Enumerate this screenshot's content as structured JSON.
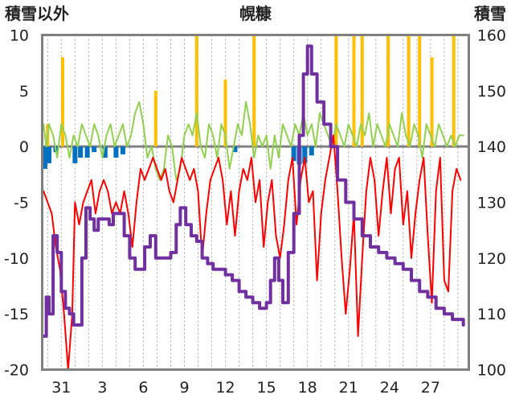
{
  "chart_data": {
    "type": "line",
    "title": "幌糠",
    "left_axis": {
      "label": "積雪以外",
      "ylim": [
        -20,
        10
      ],
      "ticks": [
        "10",
        "5",
        "0",
        "-5",
        "-10",
        "-15",
        "-20"
      ]
    },
    "right_axis": {
      "label": "積雪",
      "ylim": [
        100,
        160
      ],
      "ticks": [
        "160",
        "150",
        "140",
        "130",
        "120",
        "110",
        "100"
      ]
    },
    "x_axis": {
      "range_days": [
        -1.4,
        29.8
      ],
      "tick_labels": [
        "31",
        "3",
        "6",
        "9",
        "12",
        "15",
        "18",
        "21",
        "24",
        "27"
      ],
      "tick_positions": [
        0,
        3,
        6,
        9,
        12,
        15,
        18,
        21,
        24,
        27
      ]
    },
    "grid": "vertical dotted daily",
    "colors": {
      "snow_depth": "#7030a0",
      "temperature": "#ff0000",
      "wind": "#92d050",
      "precip_snow": "#ffc000",
      "precip_other": "#0070c0",
      "frame": "#808080"
    },
    "snow_depth_keypoints": [
      [
        -1.3,
        106
      ],
      [
        -1.1,
        113
      ],
      [
        -0.9,
        110
      ],
      [
        -0.6,
        124
      ],
      [
        -0.3,
        121
      ],
      [
        0.0,
        114
      ],
      [
        0.3,
        111
      ],
      [
        0.6,
        110
      ],
      [
        0.9,
        108
      ],
      [
        1.2,
        108
      ],
      [
        1.5,
        120
      ],
      [
        1.8,
        129
      ],
      [
        2.1,
        127
      ],
      [
        2.4,
        125
      ],
      [
        2.7,
        127
      ],
      [
        3.1,
        127
      ],
      [
        3.5,
        126
      ],
      [
        3.8,
        128
      ],
      [
        4.2,
        128
      ],
      [
        4.6,
        124
      ],
      [
        5.0,
        120
      ],
      [
        5.4,
        118
      ],
      [
        5.7,
        118
      ],
      [
        6.1,
        122
      ],
      [
        6.5,
        124
      ],
      [
        6.9,
        120
      ],
      [
        7.3,
        120
      ],
      [
        7.6,
        120
      ],
      [
        8.0,
        121
      ],
      [
        8.4,
        126
      ],
      [
        8.7,
        129
      ],
      [
        9.1,
        126
      ],
      [
        9.5,
        124
      ],
      [
        9.9,
        123
      ],
      [
        10.3,
        120
      ],
      [
        10.7,
        119
      ],
      [
        11.1,
        118
      ],
      [
        11.5,
        118
      ],
      [
        12.0,
        117
      ],
      [
        12.5,
        116
      ],
      [
        13.0,
        114
      ],
      [
        13.5,
        113
      ],
      [
        14.0,
        112
      ],
      [
        14.5,
        111
      ],
      [
        15.0,
        112
      ],
      [
        15.3,
        116
      ],
      [
        15.6,
        120
      ],
      [
        15.9,
        116
      ],
      [
        16.2,
        112
      ],
      [
        16.6,
        121
      ],
      [
        17.0,
        128
      ],
      [
        17.4,
        142
      ],
      [
        17.7,
        153
      ],
      [
        18.0,
        158
      ],
      [
        18.3,
        153
      ],
      [
        18.7,
        148
      ],
      [
        19.2,
        144
      ],
      [
        19.7,
        140
      ],
      [
        20.2,
        134
      ],
      [
        20.8,
        130
      ],
      [
        21.4,
        127
      ],
      [
        22.0,
        124
      ],
      [
        22.6,
        122
      ],
      [
        23.2,
        121
      ],
      [
        23.8,
        120
      ],
      [
        24.4,
        119
      ],
      [
        25.0,
        118
      ],
      [
        25.6,
        116
      ],
      [
        26.2,
        114
      ],
      [
        26.8,
        113
      ],
      [
        27.4,
        111
      ],
      [
        28.0,
        110
      ],
      [
        28.6,
        109
      ],
      [
        29.0,
        109
      ],
      [
        29.4,
        108
      ]
    ],
    "temperature_keypoints": [
      [
        -1.3,
        -4
      ],
      [
        -1.0,
        -5
      ],
      [
        -0.7,
        -6
      ],
      [
        -0.4,
        -9
      ],
      [
        -0.1,
        -11
      ],
      [
        0.2,
        -15
      ],
      [
        0.5,
        -20
      ],
      [
        0.8,
        -15
      ],
      [
        1.0,
        -5
      ],
      [
        1.3,
        -7
      ],
      [
        1.6,
        -5
      ],
      [
        1.9,
        -4
      ],
      [
        2.2,
        -3
      ],
      [
        2.5,
        -6
      ],
      [
        2.8,
        -4
      ],
      [
        3.1,
        -3
      ],
      [
        3.4,
        -4
      ],
      [
        3.7,
        -6
      ],
      [
        4.0,
        -5
      ],
      [
        4.3,
        -6
      ],
      [
        4.6,
        -4
      ],
      [
        4.9,
        -6
      ],
      [
        5.2,
        -9
      ],
      [
        5.5,
        -5
      ],
      [
        5.8,
        -2
      ],
      [
        6.1,
        -3
      ],
      [
        6.4,
        -2
      ],
      [
        6.7,
        -1
      ],
      [
        7.0,
        -2
      ],
      [
        7.3,
        -3
      ],
      [
        7.6,
        -2
      ],
      [
        7.9,
        -4
      ],
      [
        8.2,
        -5
      ],
      [
        8.5,
        -3
      ],
      [
        8.8,
        -1
      ],
      [
        9.1,
        -2
      ],
      [
        9.4,
        -3
      ],
      [
        9.7,
        -2
      ],
      [
        10.0,
        -4
      ],
      [
        10.3,
        -10
      ],
      [
        10.6,
        -6
      ],
      [
        10.9,
        -3
      ],
      [
        11.2,
        -2
      ],
      [
        11.5,
        -1
      ],
      [
        11.8,
        -3
      ],
      [
        12.1,
        -7
      ],
      [
        12.4,
        -4
      ],
      [
        12.7,
        -8
      ],
      [
        13.0,
        -4
      ],
      [
        13.3,
        -2
      ],
      [
        13.6,
        -3
      ],
      [
        13.9,
        -1
      ],
      [
        14.2,
        -5
      ],
      [
        14.5,
        -3
      ],
      [
        14.8,
        -9
      ],
      [
        15.1,
        -5
      ],
      [
        15.4,
        -3
      ],
      [
        15.7,
        -8
      ],
      [
        16.0,
        -10
      ],
      [
        16.3,
        -7
      ],
      [
        16.6,
        -3
      ],
      [
        16.9,
        -1
      ],
      [
        17.2,
        -7
      ],
      [
        17.5,
        -3
      ],
      [
        17.8,
        -1
      ],
      [
        18.1,
        -5
      ],
      [
        18.4,
        -4
      ],
      [
        18.7,
        -12
      ],
      [
        19.0,
        -6
      ],
      [
        19.3,
        -3
      ],
      [
        19.6,
        -1
      ],
      [
        19.9,
        1
      ],
      [
        20.2,
        -4
      ],
      [
        20.5,
        -10
      ],
      [
        20.8,
        -15
      ],
      [
        21.1,
        -11
      ],
      [
        21.4,
        -6
      ],
      [
        21.7,
        -17
      ],
      [
        22.0,
        -10
      ],
      [
        22.3,
        -4
      ],
      [
        22.6,
        -1
      ],
      [
        22.9,
        -3
      ],
      [
        23.2,
        -8
      ],
      [
        23.5,
        -4
      ],
      [
        23.8,
        -1
      ],
      [
        24.1,
        -6
      ],
      [
        24.4,
        -2
      ],
      [
        24.7,
        -1
      ],
      [
        25.0,
        -7
      ],
      [
        25.3,
        -4
      ],
      [
        25.6,
        -10
      ],
      [
        25.9,
        -6
      ],
      [
        26.2,
        -3
      ],
      [
        26.5,
        -1
      ],
      [
        26.8,
        -8
      ],
      [
        27.1,
        -14
      ],
      [
        27.4,
        -4
      ],
      [
        27.7,
        -1
      ],
      [
        28.0,
        -12
      ],
      [
        28.3,
        -13
      ],
      [
        28.6,
        -4
      ],
      [
        28.9,
        -2
      ],
      [
        29.2,
        -3
      ]
    ],
    "wind_keypoints": [
      [
        -1.3,
        2
      ],
      [
        -1.1,
        0
      ],
      [
        -0.9,
        2
      ],
      [
        -0.6,
        1
      ],
      [
        -0.3,
        -1
      ],
      [
        0.0,
        2
      ],
      [
        0.3,
        1
      ],
      [
        0.6,
        -1
      ],
      [
        0.9,
        1
      ],
      [
        1.2,
        0
      ],
      [
        1.5,
        2
      ],
      [
        1.8,
        1
      ],
      [
        2.1,
        0
      ],
      [
        2.4,
        2
      ],
      [
        2.7,
        1
      ],
      [
        3.0,
        -1
      ],
      [
        3.3,
        1
      ],
      [
        3.6,
        2
      ],
      [
        3.9,
        0
      ],
      [
        4.2,
        1
      ],
      [
        4.5,
        2
      ],
      [
        4.8,
        0
      ],
      [
        5.1,
        1
      ],
      [
        5.4,
        3
      ],
      [
        5.7,
        4
      ],
      [
        6.0,
        2
      ],
      [
        6.3,
        -1
      ],
      [
        6.6,
        0
      ],
      [
        6.9,
        -2
      ],
      [
        7.2,
        -3
      ],
      [
        7.5,
        -2
      ],
      [
        7.8,
        1
      ],
      [
        8.1,
        0
      ],
      [
        8.4,
        -3
      ],
      [
        8.7,
        -2
      ],
      [
        9.0,
        1
      ],
      [
        9.3,
        2
      ],
      [
        9.6,
        1
      ],
      [
        9.9,
        3
      ],
      [
        10.2,
        0
      ],
      [
        10.5,
        -1
      ],
      [
        10.8,
        2
      ],
      [
        11.1,
        1
      ],
      [
        11.4,
        -1
      ],
      [
        11.7,
        2
      ],
      [
        12.0,
        1
      ],
      [
        12.3,
        -2
      ],
      [
        12.6,
        0
      ],
      [
        12.9,
        2
      ],
      [
        13.2,
        1
      ],
      [
        13.5,
        4
      ],
      [
        13.8,
        2
      ],
      [
        14.1,
        -1
      ],
      [
        14.4,
        1
      ],
      [
        14.7,
        0
      ],
      [
        15.0,
        1
      ],
      [
        15.3,
        -2
      ],
      [
        15.6,
        1
      ],
      [
        15.9,
        -1
      ],
      [
        16.2,
        2
      ],
      [
        16.5,
        1
      ],
      [
        16.8,
        0
      ],
      [
        17.1,
        2
      ],
      [
        17.4,
        1
      ],
      [
        17.7,
        3
      ],
      [
        18.0,
        1
      ],
      [
        18.3,
        2
      ],
      [
        18.6,
        0
      ],
      [
        18.9,
        3
      ],
      [
        19.2,
        2
      ],
      [
        19.5,
        1
      ],
      [
        19.8,
        0
      ],
      [
        20.1,
        2
      ],
      [
        20.4,
        1
      ],
      [
        20.7,
        0
      ],
      [
        21.0,
        2
      ],
      [
        21.3,
        1
      ],
      [
        21.6,
        0
      ],
      [
        21.9,
        2
      ],
      [
        22.2,
        1
      ],
      [
        22.5,
        3
      ],
      [
        22.8,
        0
      ],
      [
        23.1,
        2
      ],
      [
        23.4,
        1
      ],
      [
        23.7,
        0
      ],
      [
        24.0,
        2
      ],
      [
        24.3,
        1
      ],
      [
        24.6,
        0
      ],
      [
        24.9,
        3
      ],
      [
        25.2,
        1
      ],
      [
        25.5,
        0
      ],
      [
        25.8,
        2
      ],
      [
        26.1,
        1
      ],
      [
        26.4,
        -1
      ],
      [
        26.7,
        2
      ],
      [
        27.0,
        1
      ],
      [
        27.3,
        0
      ],
      [
        27.6,
        2
      ],
      [
        27.9,
        1
      ],
      [
        28.2,
        0
      ],
      [
        28.5,
        1
      ],
      [
        28.8,
        0
      ],
      [
        29.1,
        1
      ],
      [
        29.4,
        1
      ]
    ],
    "precip_bars_snow": [
      [
        -1.0,
        2
      ],
      [
        0.1,
        8
      ],
      [
        6.9,
        5
      ],
      [
        9.9,
        10
      ],
      [
        12.0,
        6
      ],
      [
        14.1,
        10
      ],
      [
        20.1,
        10
      ],
      [
        21.4,
        10
      ],
      [
        22.0,
        10
      ],
      [
        23.9,
        10
      ],
      [
        25.4,
        10
      ],
      [
        26.2,
        10
      ],
      [
        27.1,
        8
      ],
      [
        28.7,
        10
      ]
    ],
    "precip_bars_other": [
      [
        -1.2,
        -2
      ],
      [
        -0.9,
        -1.5
      ],
      [
        -0.4,
        -0.5
      ],
      [
        1.0,
        -1.5
      ],
      [
        1.4,
        -1
      ],
      [
        1.9,
        -1
      ],
      [
        2.4,
        -0.5
      ],
      [
        3.2,
        -1
      ],
      [
        4.0,
        -1
      ],
      [
        4.5,
        -0.7
      ],
      [
        12.7,
        -0.5
      ],
      [
        17.0,
        -1.3
      ],
      [
        17.4,
        -1.6
      ],
      [
        17.8,
        -1.5
      ],
      [
        18.3,
        -0.8
      ]
    ]
  }
}
